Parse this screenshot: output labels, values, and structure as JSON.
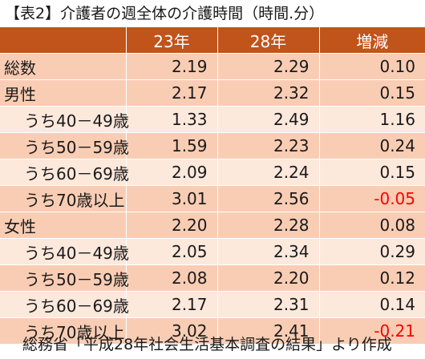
{
  "title": "【表2】介護者の週全体の介護時間（時間.分）",
  "columns": [
    "",
    "23年",
    "28年",
    "増減"
  ],
  "rows": [
    {
      "label": "総数",
      "v23": "2.19",
      "v28": "2.29",
      "change": "0.10"
    },
    {
      "label": "男性",
      "v23": "2.17",
      "v28": "2.32",
      "change": "0.15"
    },
    {
      "label": "うち40－49歳",
      "v23": "1.33",
      "v28": "2.49",
      "change": "1.16"
    },
    {
      "label": "うち50－59歳",
      "v23": "1.59",
      "v28": "2.23",
      "change": "0.24"
    },
    {
      "label": "うち60－69歳",
      "v23": "2.09",
      "v28": "2.24",
      "change": "0.15"
    },
    {
      "label": "うち70歳以上",
      "v23": "3.01",
      "v28": "2.56",
      "change": "-0.05"
    },
    {
      "label": "女性",
      "v23": "2.20",
      "v28": "2.28",
      "change": "0.08"
    },
    {
      "label": "うち40－49歳",
      "v23": "2.05",
      "v28": "2.34",
      "change": "0.29"
    },
    {
      "label": "うち50－59歳",
      "v23": "2.08",
      "v28": "2.20",
      "change": "0.12"
    },
    {
      "label": "うち60－69歳",
      "v23": "2.17",
      "v28": "2.31",
      "change": "0.14"
    },
    {
      "label": "うち70歳以上",
      "v23": "3.02",
      "v28": "2.41",
      "change": "-0.21"
    }
  ],
  "source": "総務省「平成28年社会生活基本調査の結果」より作成",
  "colors": {
    "header": "#c0541b",
    "row_dark": "#f9cdb4",
    "row_light": "#fde8dc",
    "negative": "#ff0000"
  }
}
